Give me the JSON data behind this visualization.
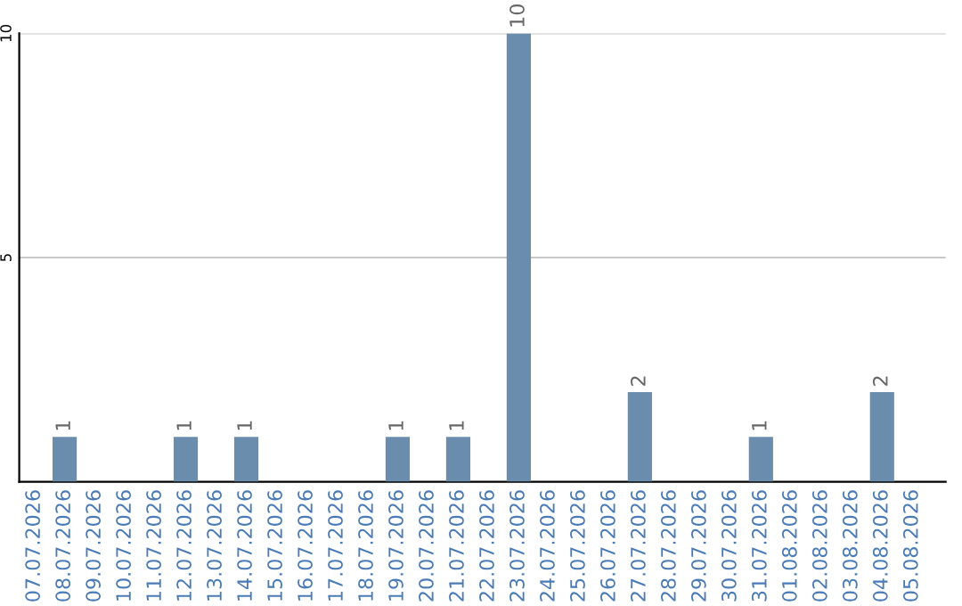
{
  "chart_data": {
    "type": "bar",
    "categories": [
      "07.07.2026",
      "08.07.2026",
      "09.07.2026",
      "10.07.2026",
      "11.07.2026",
      "12.07.2026",
      "13.07.2026",
      "14.07.2026",
      "15.07.2026",
      "16.07.2026",
      "17.07.2026",
      "18.07.2026",
      "19.07.2026",
      "20.07.2026",
      "21.07.2026",
      "22.07.2026",
      "23.07.2026",
      "24.07.2026",
      "25.07.2026",
      "26.07.2026",
      "27.07.2026",
      "28.07.2026",
      "29.07.2026",
      "30.07.2026",
      "31.07.2026",
      "01.08.2026",
      "02.08.2026",
      "03.08.2026",
      "04.08.2026",
      "05.08.2026"
    ],
    "values": [
      0,
      1,
      0,
      0,
      0,
      1,
      0,
      1,
      0,
      0,
      0,
      0,
      1,
      0,
      1,
      0,
      10,
      0,
      0,
      0,
      2,
      0,
      0,
      0,
      1,
      0,
      0,
      0,
      2,
      0
    ],
    "value_labels": [
      null,
      "1",
      null,
      null,
      null,
      "1",
      null,
      "1",
      null,
      null,
      null,
      null,
      "1",
      null,
      "1",
      null,
      "10",
      null,
      null,
      null,
      "2",
      null,
      null,
      null,
      "1",
      null,
      null,
      null,
      "2",
      null
    ],
    "color": "#6a8cad",
    "ylim": [
      0,
      10
    ],
    "yticks": [
      5,
      10
    ],
    "grid": "y",
    "legend": false
  }
}
